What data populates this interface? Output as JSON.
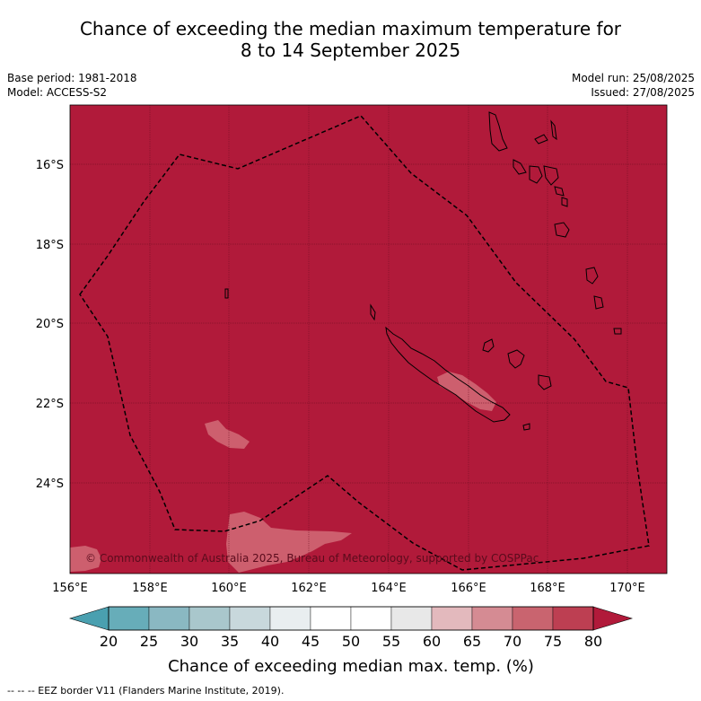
{
  "title": {
    "line1": "Chance of exceeding the median maximum temperature for",
    "line2": "8 to 14 September 2025"
  },
  "meta": {
    "base_period": "Base period: 1981-2018",
    "model": "Model: ACCESS-S2",
    "model_run": "Model run: 25/08/2025",
    "issued": "Issued: 27/08/2025"
  },
  "map": {
    "fill_color": "#b11a3a",
    "light_patch_color": "#cd5f6e",
    "lat_labels": [
      "16°S",
      "18°S",
      "20°S",
      "22°S",
      "24°S"
    ],
    "lon_labels": [
      "156°E",
      "158°E",
      "160°E",
      "162°E",
      "164°E",
      "166°E",
      "168°E",
      "170°E"
    ],
    "copyright": "© Commonwealth of Australia 2025, Bureau of Meteorology, supported by COSPPac"
  },
  "colorbar": {
    "ticks": [
      "20",
      "25",
      "30",
      "35",
      "40",
      "45",
      "50",
      "55",
      "60",
      "65",
      "70",
      "75",
      "80"
    ],
    "colors": [
      "#67adb9",
      "#8ab8c2",
      "#a9c7cc",
      "#c8d8dc",
      "#e9eef0",
      "#ffffff",
      "#ffffff",
      "#e8e8e8",
      "#e3b9bd",
      "#d58b93",
      "#c9646f",
      "#bd3f52"
    ],
    "under_color": "#4aa0b0",
    "over_color": "#b11a3a",
    "label": "Chance of exceeding median max. temp. (%)"
  },
  "footer": "-- -- -- EEZ border V11 (Flanders Marine Institute, 2019)."
}
